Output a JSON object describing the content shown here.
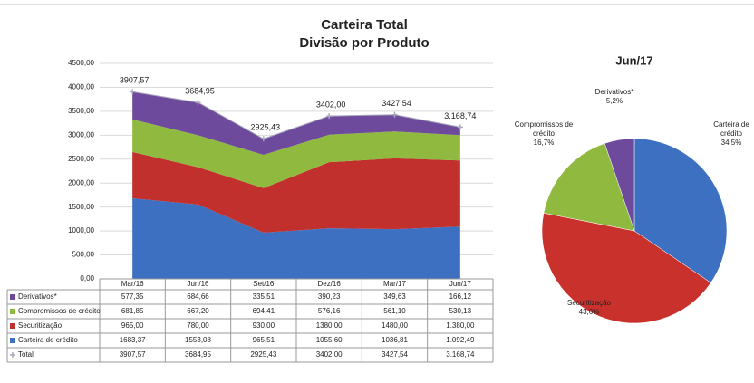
{
  "chart_data": [
    {
      "type": "area",
      "title": "Carteira Total",
      "subtitle": "Divisão por Produto",
      "categories": [
        "Mar/16",
        "Jun/16",
        "Set/16",
        "Dez/16",
        "Mar/17",
        "Jun/17"
      ],
      "ylim": [
        0,
        4500
      ],
      "yticks": [
        {
          "value": 0,
          "label": "0,00"
        },
        {
          "value": 500,
          "label": "500,00"
        },
        {
          "value": 1000,
          "label": "1000,00"
        },
        {
          "value": 1500,
          "label": "1500,00"
        },
        {
          "value": 2000,
          "label": "2000,00"
        },
        {
          "value": 2500,
          "label": "2500,00"
        },
        {
          "value": 3000,
          "label": "3000,00"
        },
        {
          "value": 3500,
          "label": "3500,00"
        },
        {
          "value": 4000,
          "label": "4000,00"
        },
        {
          "value": 4500,
          "label": "4500,00"
        }
      ],
      "grid": true,
      "stacked": true,
      "series": [
        {
          "name": "Derivativos*",
          "type": "area",
          "color": "#6e4a9c",
          "values": [
            577.35,
            684.66,
            335.51,
            390.23,
            349.63,
            166.12
          ],
          "value_labels": [
            "577,35",
            "684,66",
            "335,51",
            "390,23",
            "349,63",
            "166,12"
          ]
        },
        {
          "name": "Compromissos de crédito",
          "type": "area",
          "color": "#8fba3f",
          "values": [
            681.85,
            667.2,
            694.41,
            576.16,
            561.1,
            530.13
          ],
          "value_labels": [
            "681,85",
            "667,20",
            "694,41",
            "576,16",
            "561,10",
            "530,13"
          ]
        },
        {
          "name": "Securitização",
          "type": "area",
          "color": "#c1302c",
          "values": [
            965.0,
            780.0,
            930.0,
            1380.0,
            1480.0,
            1380.0
          ],
          "value_labels": [
            "965,00",
            "780,00",
            "930,00",
            "1380,00",
            "1480,00",
            "1.380,00"
          ]
        },
        {
          "name": "Carteira de crédito",
          "type": "area",
          "color": "#3e70c2",
          "values": [
            1683.37,
            1553.08,
            965.51,
            1055.6,
            1036.81,
            1092.49
          ],
          "value_labels": [
            "1683,37",
            "1553,08",
            "965,51",
            "1055,60",
            "1036,81",
            "1.092,49"
          ]
        },
        {
          "name": "Total",
          "type": "line",
          "color": "#a9a9bd",
          "values": [
            3907.57,
            3684.95,
            2925.43,
            3402.0,
            3427.54,
            3168.74
          ],
          "value_labels": [
            "3907,57",
            "3684,95",
            "2925,43",
            "3402,00",
            "3427,54",
            "3.168,74"
          ]
        }
      ]
    },
    {
      "type": "pie",
      "title": "Jun/17",
      "categories": [
        "Carteira de crédito",
        "Securitização",
        "Compromissos de crédito",
        "Derivativos*"
      ],
      "values": [
        34.5,
        43.6,
        16.7,
        5.2
      ],
      "value_labels": [
        "34,5%",
        "43,6%",
        "16,7%",
        "5,2%"
      ],
      "colors": [
        "#3e70c2",
        "#c9312d",
        "#8fba3f",
        "#6e4a9c"
      ]
    }
  ]
}
